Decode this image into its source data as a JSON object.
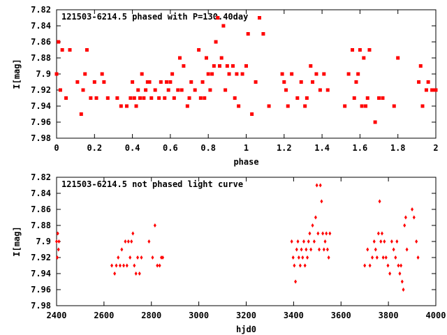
{
  "chart_data": [
    {
      "type": "scatter",
      "title": "121503-6214.5 phased with P=130.40day",
      "xlabel": "phase",
      "ylabel": "I[mag]",
      "xlim": [
        0,
        2
      ],
      "ylim": [
        7.98,
        7.82
      ],
      "y_inverted": true,
      "xticks": [
        "0",
        "0.2",
        "0.4",
        "0.6",
        "0.8",
        "1",
        "1.2",
        "1.4",
        "1.6",
        "1.8",
        "2"
      ],
      "xtick_values": [
        0,
        0.2,
        0.4,
        0.6,
        0.8,
        1.0,
        1.2,
        1.4,
        1.6,
        1.8,
        2.0
      ],
      "yticks": [
        "7.82",
        "7.84",
        "7.86",
        "7.88",
        "7.9",
        "7.92",
        "7.94",
        "7.96",
        "7.98"
      ],
      "ytick_values": [
        7.82,
        7.84,
        7.86,
        7.88,
        7.9,
        7.92,
        7.94,
        7.96,
        7.98
      ],
      "grid": false,
      "marker_color": "#ff0000",
      "series": [
        {
          "x": [
            0.0,
            0.01,
            0.02,
            0.03,
            0.05,
            0.07,
            0.11,
            0.13,
            0.14,
            0.15,
            0.16,
            0.18,
            0.2,
            0.21,
            0.24,
            0.25,
            0.27,
            0.32,
            0.34,
            0.37,
            0.39,
            0.4,
            0.41,
            0.42,
            0.43,
            0.44,
            0.45,
            0.46,
            0.47,
            0.48,
            0.49,
            0.5,
            0.52,
            0.54,
            0.55,
            0.57,
            0.58,
            0.59,
            0.6,
            0.61,
            0.62,
            0.64,
            0.65,
            0.66,
            0.67,
            0.69,
            0.7,
            0.71,
            0.73,
            0.75,
            0.76,
            0.77,
            0.78,
            0.79,
            0.8,
            0.81,
            0.82,
            0.83,
            0.84,
            0.85,
            0.86,
            0.87,
            0.88,
            0.89,
            0.9,
            0.91,
            0.93,
            0.94,
            0.95,
            0.96,
            0.98,
            1.0,
            1.01,
            1.03,
            1.05,
            1.07,
            1.09,
            1.12,
            1.19,
            1.2,
            1.21,
            1.22,
            1.24,
            1.27,
            1.29,
            1.31,
            1.32,
            1.34,
            1.35,
            1.37,
            1.39,
            1.41,
            1.43,
            1.52,
            1.54,
            1.56,
            1.57,
            1.58,
            1.59,
            1.6,
            1.61,
            1.62,
            1.63,
            1.64,
            1.65,
            1.68,
            1.7,
            1.72,
            1.78,
            1.8,
            1.91,
            1.92,
            1.93,
            1.95,
            1.96,
            1.98,
            1.99,
            2.0
          ],
          "y": [
            7.9,
            7.86,
            7.92,
            7.87,
            7.93,
            7.87,
            7.91,
            7.95,
            7.92,
            7.9,
            7.87,
            7.93,
            7.91,
            7.93,
            7.9,
            7.91,
            7.93,
            7.93,
            7.94,
            7.94,
            7.93,
            7.91,
            7.93,
            7.94,
            7.92,
            7.93,
            7.9,
            7.93,
            7.92,
            7.91,
            7.91,
            7.93,
            7.92,
            7.93,
            7.91,
            7.93,
            7.91,
            7.92,
            7.91,
            7.9,
            7.93,
            7.92,
            7.88,
            7.92,
            7.89,
            7.94,
            7.93,
            7.91,
            7.92,
            7.87,
            7.93,
            7.91,
            7.93,
            7.88,
            7.9,
            7.92,
            7.9,
            7.89,
            7.86,
            7.83,
            7.89,
            7.88,
            7.84,
            7.92,
            7.89,
            7.9,
            7.89,
            7.93,
            7.9,
            7.94,
            7.9,
            7.89,
            7.85,
            7.95,
            7.91,
            7.83,
            7.85,
            7.94,
            7.9,
            7.91,
            7.92,
            7.94,
            7.9,
            7.93,
            7.91,
            7.94,
            7.93,
            7.89,
            7.91,
            7.9,
            7.92,
            7.9,
            7.92,
            7.94,
            7.9,
            7.87,
            7.93,
            7.91,
            7.9,
            7.87,
            7.94,
            7.88,
            7.94,
            7.93,
            7.87,
            7.96,
            7.93,
            7.93,
            7.94,
            7.88,
            7.91,
            7.89,
            7.94,
            7.92,
            7.91,
            7.92,
            7.92,
            7.92
          ]
        }
      ]
    },
    {
      "type": "scatter",
      "title": "121503-6214.5 not phased light curve",
      "xlabel": "hjd0",
      "ylabel": "I[mag]",
      "xlim": [
        2400,
        4000
      ],
      "ylim": [
        7.98,
        7.82
      ],
      "y_inverted": true,
      "xticks": [
        "2400",
        "2600",
        "2800",
        "3000",
        "3200",
        "3400",
        "3600",
        "3800",
        "4000"
      ],
      "xtick_values": [
        2400,
        2600,
        2800,
        3000,
        3200,
        3400,
        3600,
        3800,
        4000
      ],
      "yticks": [
        "7.82",
        "7.84",
        "7.86",
        "7.88",
        "7.9",
        "7.92",
        "7.94",
        "7.96",
        "7.98"
      ],
      "ytick_values": [
        7.82,
        7.84,
        7.86,
        7.88,
        7.9,
        7.92,
        7.94,
        7.96,
        7.98
      ],
      "grid": false,
      "marker_color": "#ff0000",
      "series": [
        {
          "x": [
            2400,
            2403,
            2405,
            2408,
            2410,
            2633,
            2645,
            2652,
            2660,
            2668,
            2675,
            2683,
            2690,
            2697,
            2703,
            2710,
            2716,
            2722,
            2728,
            2735,
            2742,
            2750,
            2758,
            2790,
            2805,
            2815,
            2825,
            2835,
            2842,
            2848,
            3392,
            3398,
            3403,
            3408,
            3413,
            3418,
            3422,
            3428,
            3433,
            3438,
            3443,
            3448,
            3453,
            3458,
            3463,
            3468,
            3473,
            3480,
            3487,
            3493,
            3498,
            3503,
            3508,
            3513,
            3518,
            3523,
            3528,
            3533,
            3538,
            3543,
            3548,
            3553,
            3700,
            3712,
            3722,
            3732,
            3740,
            3746,
            3752,
            3758,
            3763,
            3768,
            3773,
            3778,
            3783,
            3790,
            3798,
            3806,
            3814,
            3822,
            3830,
            3836,
            3842,
            3848,
            3853,
            3858,
            3863,
            3868,
            3873,
            3878,
            3900,
            3908,
            3918,
            3925
          ],
          "y": [
            7.9,
            7.92,
            7.89,
            7.91,
            7.9,
            7.93,
            7.94,
            7.93,
            7.92,
            7.93,
            7.91,
            7.93,
            7.9,
            7.93,
            7.9,
            7.92,
            7.9,
            7.89,
            7.93,
            7.94,
            7.92,
            7.94,
            7.92,
            7.9,
            7.92,
            7.88,
            7.93,
            7.93,
            7.92,
            7.92,
            7.9,
            7.92,
            7.93,
            7.95,
            7.91,
            7.9,
            7.92,
            7.93,
            7.91,
            7.92,
            7.9,
            7.93,
            7.91,
            7.92,
            7.9,
            7.89,
            7.91,
            7.88,
            7.9,
            7.87,
            7.83,
            7.89,
            7.91,
            7.83,
            7.85,
            7.89,
            7.91,
            7.9,
            7.89,
            7.91,
            7.92,
            7.89,
            7.93,
            7.91,
            7.93,
            7.92,
            7.9,
            7.91,
            7.92,
            7.89,
            7.85,
            7.9,
            7.89,
            7.92,
            7.9,
            7.92,
            7.93,
            7.94,
            7.9,
            7.91,
            7.92,
            7.9,
            7.93,
            7.94,
            7.93,
            7.95,
            7.96,
            7.88,
            7.87,
            7.91,
            7.86,
            7.87,
            7.9,
            7.92
          ]
        }
      ]
    }
  ]
}
